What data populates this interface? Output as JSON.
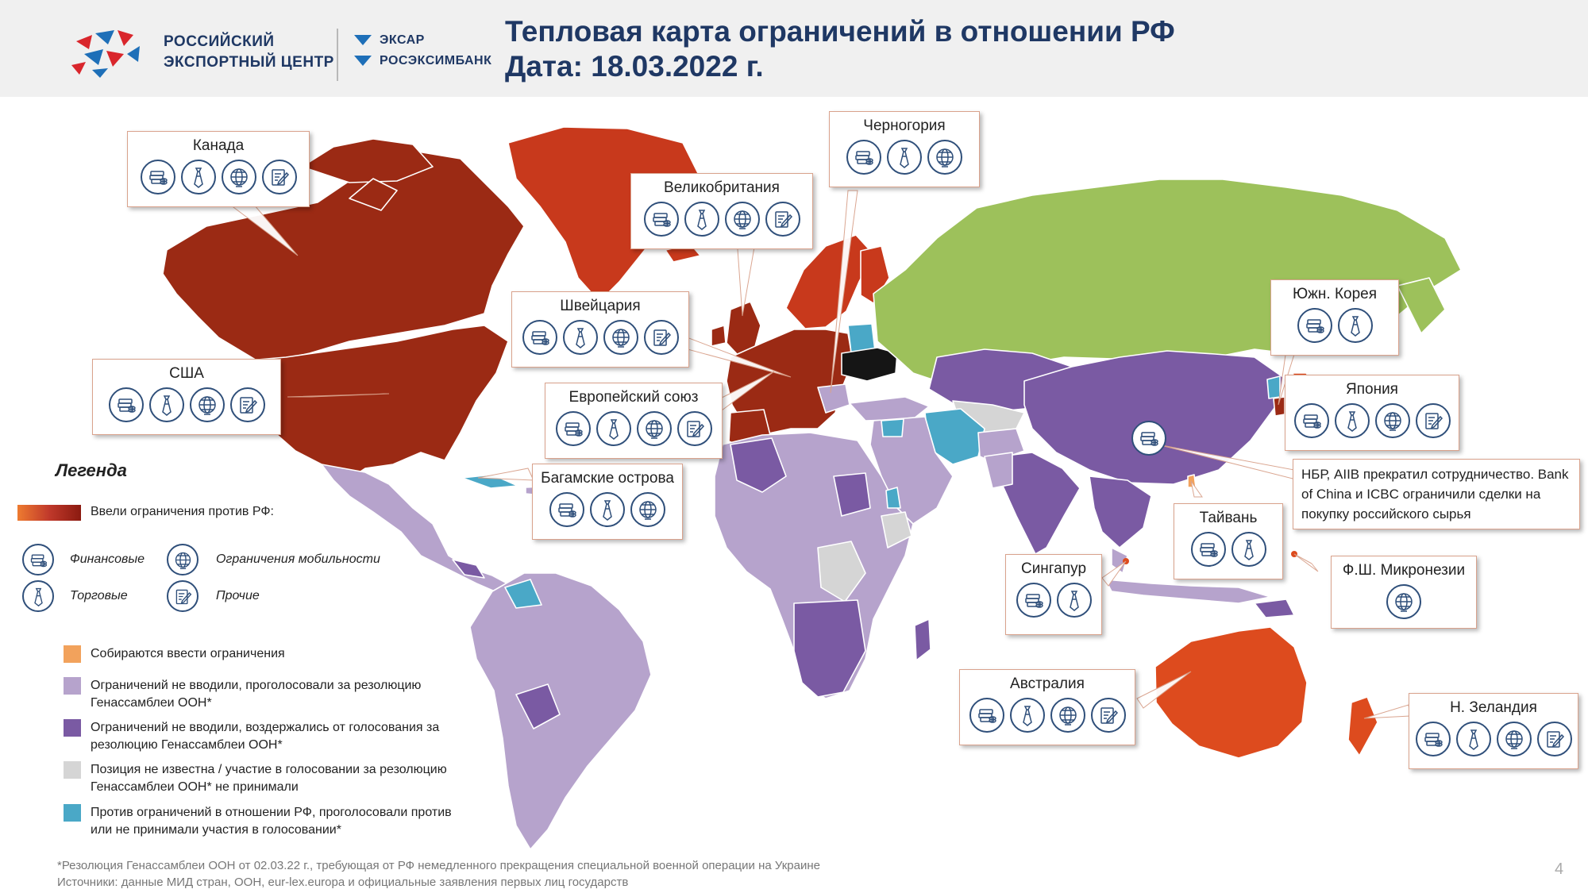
{
  "header": {
    "org_line1": "РОССИЙСКИЙ",
    "org_line2": "ЭКСПОРТНЫЙ ЦЕНТР",
    "partner1": "ЭКСАР",
    "partner2": "РОСЭКСИМБАНК",
    "title_line1": "Тепловая карта ограничений в отношении РФ",
    "title_line2": "Дата: 18.03.2022 г."
  },
  "colors": {
    "sanctions_dark": "#9b2a14",
    "sanctions_mid": "#c8391c",
    "sanctions_orange": "#dd4b1e",
    "planning": "#f2a25c",
    "abstained_light": "#b6a3cc",
    "abstained_dark": "#7a5aa3",
    "unknown": "#d5d5d5",
    "against": "#4aa8c7",
    "russia": "#9dc15b",
    "icon_stroke": "#2f4f7a"
  },
  "callouts": {
    "canada": {
      "name": "Канада",
      "icons": [
        "financial-icon",
        "trade-icon",
        "mobility-icon",
        "other-icon"
      ]
    },
    "montenegro": {
      "name": "Черногория",
      "icons": [
        "financial-icon",
        "trade-icon",
        "mobility-icon"
      ]
    },
    "uk": {
      "name": "Великобритания",
      "icons": [
        "financial-icon",
        "trade-icon",
        "mobility-icon",
        "other-icon"
      ]
    },
    "switzerland": {
      "name": "Швейцария",
      "icons": [
        "financial-icon",
        "trade-icon",
        "mobility-icon",
        "other-icon"
      ]
    },
    "usa": {
      "name": "США",
      "icons": [
        "financial-icon",
        "trade-icon",
        "mobility-icon",
        "other-icon"
      ]
    },
    "eu": {
      "name": "Европейский союз",
      "icons": [
        "financial-icon",
        "trade-icon",
        "mobility-icon",
        "other-icon"
      ]
    },
    "bahamas": {
      "name": "Багамские острова",
      "icons": [
        "financial-icon",
        "trade-icon",
        "mobility-icon"
      ]
    },
    "south_korea": {
      "name": "Южн. Корея",
      "icons": [
        "financial-icon",
        "trade-icon"
      ]
    },
    "japan": {
      "name": "Япония",
      "icons": [
        "financial-icon",
        "trade-icon",
        "mobility-icon",
        "other-icon"
      ]
    },
    "taiwan": {
      "name": "Тайвань",
      "icons": [
        "financial-icon",
        "trade-icon"
      ]
    },
    "singapore": {
      "name": "Сингапур",
      "icons": [
        "financial-icon",
        "trade-icon"
      ]
    },
    "micronesia": {
      "name": "Ф.Ш. Микронезии",
      "icons": [
        "mobility-icon"
      ]
    },
    "australia": {
      "name": "Австралия",
      "icons": [
        "financial-icon",
        "trade-icon",
        "mobility-icon",
        "other-icon"
      ]
    },
    "new_zealand": {
      "name": "Н. Зеландия",
      "icons": [
        "financial-icon",
        "trade-icon",
        "mobility-icon",
        "other-icon"
      ]
    }
  },
  "china_note": "НБР, AIIB прекратил сотрудничество. Bank of China и ICBC ограничили сделки на покупку российского сырья",
  "legend": {
    "title": "Легенда",
    "gradient_label": "Ввели ограничения против РФ:",
    "icon_financial": "Финансовые",
    "icon_trade": "Торговые",
    "icon_mobility": "Ограничения мобильности",
    "icon_other": "Прочие",
    "planning": "Собираются ввести ограничения",
    "abstained_light": "Ограничений не вводили, проголосовали за резолюцию Генассамблеи ООН*",
    "abstained_dark": "Ограничений не вводили, воздержались от голосования за резолюцию Генассамблеи ООН*",
    "unknown": "Позиция не известна / участие в голосовании за резолюцию Генассамблеи ООН* не принимали",
    "against": "Против ограничений в отношении РФ, проголосовали против или не принимали участия в голосовании*"
  },
  "footnote_line1": "*Резолюция Генассамблеи ООН от 02.03.22 г., требующая от РФ немедленного прекращения специальной военной операции на Украине",
  "footnote_line2": "Источники: данные МИД стран, ООН, eur-lex.europa и официальные заявления первых лиц государств",
  "page_number": "4"
}
